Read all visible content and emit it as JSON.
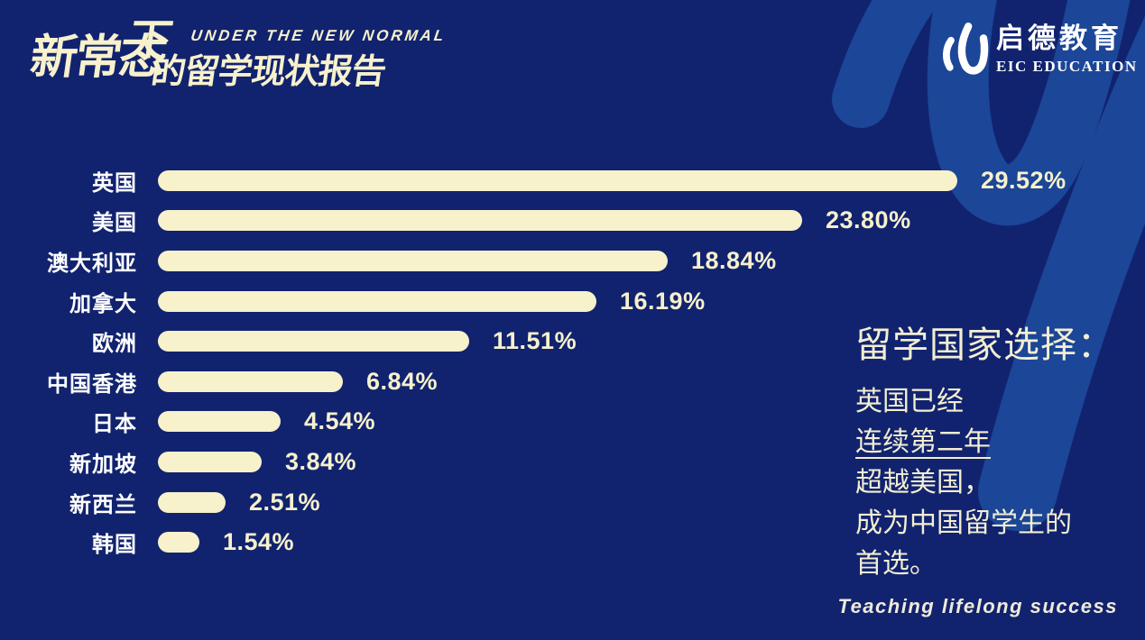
{
  "title": {
    "eyebrow": "UNDER THE NEW NORMAL",
    "cjk_main": "新常态",
    "cjk_sup": "下",
    "cjk_rest": "的留学现状报告"
  },
  "brand": {
    "name_cn": "启德教育",
    "name_en": "EIC EDUCATION",
    "logo_icon": "eic-double-leaf"
  },
  "chart_data": {
    "type": "bar",
    "orientation": "horizontal",
    "title": "留学国家选择",
    "categories": [
      "英国",
      "美国",
      "澳大利亚",
      "加拿大",
      "欧洲",
      "中国香港",
      "日本",
      "新加坡",
      "新西兰",
      "韩国"
    ],
    "values": [
      29.52,
      23.8,
      18.84,
      16.19,
      11.51,
      6.84,
      4.54,
      3.84,
      2.51,
      1.54
    ],
    "value_labels": [
      "29.52%",
      "23.80%",
      "18.84%",
      "16.19%",
      "11.51%",
      "6.84%",
      "4.54%",
      "3.84%",
      "2.51%",
      "1.54%"
    ],
    "unit": "%",
    "xlim": [
      0,
      30
    ],
    "grid": false,
    "legend": false,
    "bar_color": "#f7f1cc",
    "category_label_color": "#ffffff",
    "value_label_color": "#f7f1cc"
  },
  "note": {
    "heading": "留学国家选择：",
    "lines": [
      {
        "text": "英国已经",
        "underline": false
      },
      {
        "text": "连续第二年",
        "underline": true
      },
      {
        "text": "超越美国，",
        "underline": false
      },
      {
        "text": "成为中国留学生的",
        "underline": false
      },
      {
        "text": "首选。",
        "underline": false
      }
    ]
  },
  "footer": {
    "slogan": "Teaching lifelong success"
  },
  "colors": {
    "background": "#11236f",
    "watermark_blue": "#1c4697",
    "cream": "#f7f1cc",
    "white": "#ffffff"
  }
}
